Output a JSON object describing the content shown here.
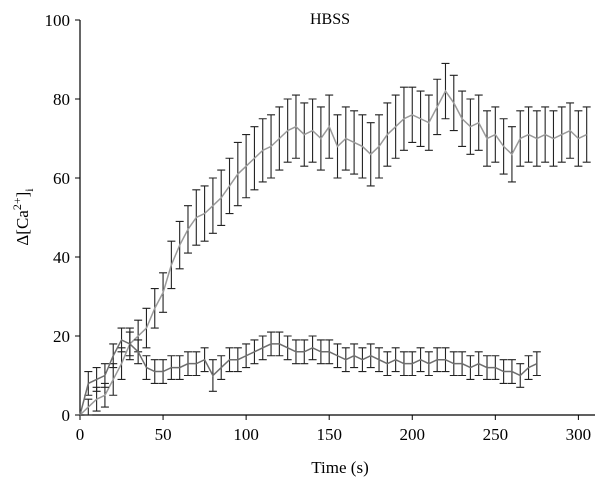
{
  "chart_data": {
    "type": "line",
    "title": "HBSS",
    "xlabel": "Time (s)",
    "ylabel": {
      "prefix": "Δ[Ca",
      "superscript": "2+",
      "close": "]",
      "subscript": "i"
    },
    "xlim": [
      0,
      310
    ],
    "ylim": [
      0,
      100
    ],
    "xticks": [
      0,
      50,
      100,
      150,
      200,
      250,
      300
    ],
    "yticks": [
      0,
      20,
      40,
      60,
      80,
      100
    ],
    "grid": false,
    "series": [
      {
        "color": "#9a9a9a",
        "bar_color": "#222222",
        "x": [
          5,
          10,
          15,
          20,
          25,
          30,
          35,
          40,
          45,
          50,
          55,
          60,
          65,
          70,
          75,
          80,
          85,
          90,
          95,
          100,
          105,
          110,
          115,
          120,
          125,
          130,
          135,
          140,
          145,
          150,
          155,
          160,
          165,
          170,
          175,
          180,
          185,
          190,
          195,
          200,
          205,
          210,
          215,
          220,
          225,
          230,
          235,
          240,
          245,
          250,
          255,
          260,
          265,
          270,
          275,
          280,
          285,
          290,
          295,
          300,
          305
        ],
        "y": [
          2,
          4,
          5,
          9,
          13,
          18,
          20,
          22,
          27,
          31,
          38,
          43,
          47,
          50,
          51,
          53,
          55,
          58,
          61,
          63,
          65,
          67,
          68,
          70,
          72,
          73,
          71,
          72,
          70,
          73,
          68,
          70,
          69,
          68,
          66,
          68,
          71,
          73,
          75,
          76,
          75,
          74,
          78,
          82,
          79,
          75,
          73,
          74,
          70,
          71,
          68,
          66,
          70,
          71,
          70,
          71,
          70,
          71,
          72,
          70,
          71
        ],
        "err": [
          2,
          3,
          3,
          4,
          4,
          4,
          4,
          5,
          5,
          5,
          6,
          6,
          6,
          7,
          7,
          7,
          7,
          7,
          8,
          8,
          8,
          8,
          8,
          8,
          8,
          8,
          8,
          8,
          8,
          8,
          8,
          8,
          8,
          8,
          8,
          8,
          8,
          8,
          8,
          7,
          7,
          7,
          7,
          7,
          7,
          7,
          7,
          7,
          7,
          7,
          7,
          7,
          7,
          7,
          7,
          7,
          7,
          7,
          7,
          7,
          7
        ]
      },
      {
        "color": "#6e6e6e",
        "bar_color": "#222222",
        "x": [
          5,
          10,
          15,
          20,
          25,
          30,
          35,
          40,
          45,
          50,
          55,
          60,
          65,
          70,
          75,
          80,
          85,
          90,
          95,
          100,
          105,
          110,
          115,
          120,
          125,
          130,
          135,
          140,
          145,
          150,
          155,
          160,
          165,
          170,
          175,
          180,
          185,
          190,
          195,
          200,
          205,
          210,
          215,
          220,
          225,
          230,
          235,
          240,
          245,
          250,
          255,
          260,
          265,
          270,
          275
        ],
        "y": [
          8,
          9,
          10,
          15,
          19,
          18,
          16,
          12,
          11,
          11,
          12,
          12,
          13,
          13,
          14,
          10,
          12,
          14,
          14,
          15,
          16,
          17,
          18,
          18,
          17,
          16,
          16,
          17,
          16,
          16,
          15,
          14,
          15,
          14,
          15,
          14,
          13,
          14,
          13,
          13,
          14,
          13,
          14,
          14,
          13,
          13,
          12,
          13,
          12,
          12,
          11,
          11,
          10,
          12,
          13
        ],
        "err": [
          3,
          3,
          3,
          3,
          3,
          3,
          3,
          3,
          3,
          3,
          3,
          3,
          3,
          3,
          3,
          4,
          3,
          3,
          3,
          3,
          3,
          3,
          3,
          3,
          3,
          3,
          3,
          3,
          3,
          3,
          3,
          3,
          3,
          3,
          3,
          3,
          3,
          3,
          3,
          3,
          3,
          3,
          3,
          3,
          3,
          3,
          3,
          3,
          3,
          3,
          3,
          3,
          3,
          3,
          3
        ]
      }
    ]
  }
}
